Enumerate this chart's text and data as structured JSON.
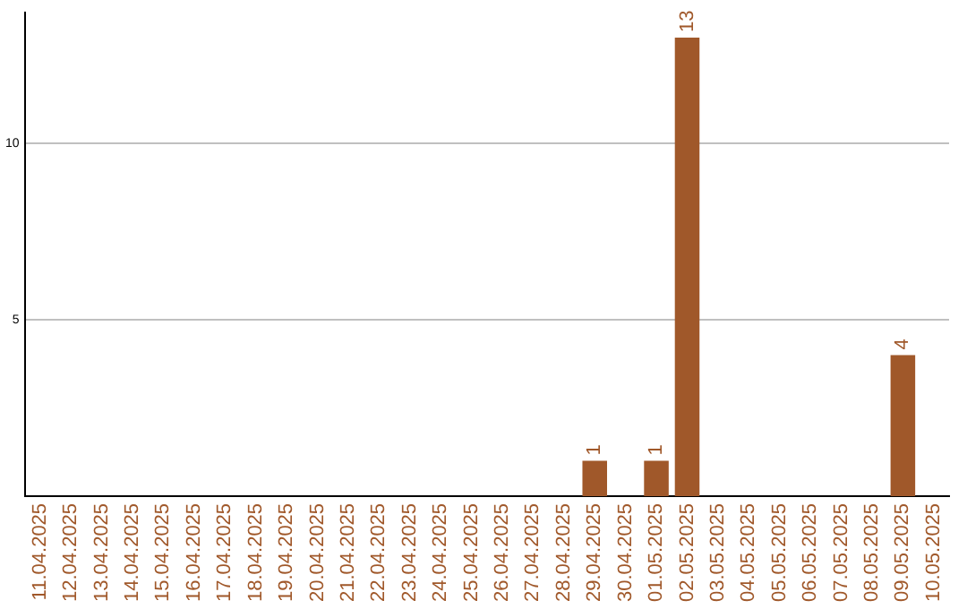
{
  "chart_data": {
    "type": "bar",
    "categories": [
      "11.04.2025",
      "12.04.2025",
      "13.04.2025",
      "14.04.2025",
      "15.04.2025",
      "16.04.2025",
      "17.04.2025",
      "18.04.2025",
      "19.04.2025",
      "20.04.2025",
      "21.04.2025",
      "22.04.2025",
      "23.04.2025",
      "24.04.2025",
      "25.04.2025",
      "26.04.2025",
      "27.04.2025",
      "28.04.2025",
      "29.04.2025",
      "30.04.2025",
      "01.05.2025",
      "02.05.2025",
      "03.05.2025",
      "04.05.2025",
      "05.05.2025",
      "06.05.2025",
      "07.05.2025",
      "08.05.2025",
      "09.05.2025",
      "10.05.2025"
    ],
    "values": [
      0,
      0,
      0,
      0,
      0,
      0,
      0,
      0,
      0,
      0,
      0,
      0,
      0,
      0,
      0,
      0,
      0,
      0,
      1,
      0,
      1,
      13,
      0,
      0,
      0,
      0,
      0,
      0,
      4,
      0
    ],
    "value_labels": [
      null,
      null,
      null,
      null,
      null,
      null,
      null,
      null,
      null,
      null,
      null,
      null,
      null,
      null,
      null,
      null,
      null,
      null,
      "1",
      null,
      "1",
      "13",
      null,
      null,
      null,
      null,
      null,
      null,
      "4",
      null
    ],
    "color": "#a0582a",
    "ylim": [
      0,
      13.7
    ],
    "yticks": [
      5,
      10
    ],
    "grid": "y"
  }
}
